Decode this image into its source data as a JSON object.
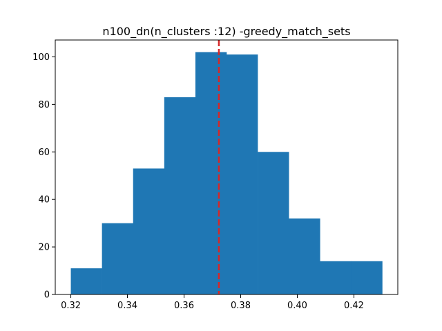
{
  "chart_data": {
    "type": "bar",
    "title": "n100_dn(n_clusters :12) -greedy_match_sets",
    "xlabel": "",
    "ylabel": "",
    "bin_edges": [
      0.32,
      0.331,
      0.342,
      0.353,
      0.364,
      0.375,
      0.386,
      0.397,
      0.408,
      0.419,
      0.43
    ],
    "values": [
      11,
      30,
      53,
      83,
      102,
      101,
      60,
      32,
      14,
      14
    ],
    "xlim": [
      0.3145,
      0.4355
    ],
    "ylim": [
      0,
      107.1
    ],
    "xticks": [
      0.32,
      0.34,
      0.36,
      0.38,
      0.4,
      0.42
    ],
    "xtick_labels": [
      "0.32",
      "0.34",
      "0.36",
      "0.38",
      "0.40",
      "0.42"
    ],
    "yticks": [
      0,
      20,
      40,
      60,
      80,
      100
    ],
    "ytick_labels": [
      "0",
      "20",
      "40",
      "60",
      "80",
      "100"
    ],
    "reference_line": {
      "x": 0.3723,
      "style": "dashed"
    },
    "grid": false,
    "colors": {
      "bars": "#1f77b4",
      "reference_line": "#d62728",
      "axes": "#000000"
    }
  }
}
